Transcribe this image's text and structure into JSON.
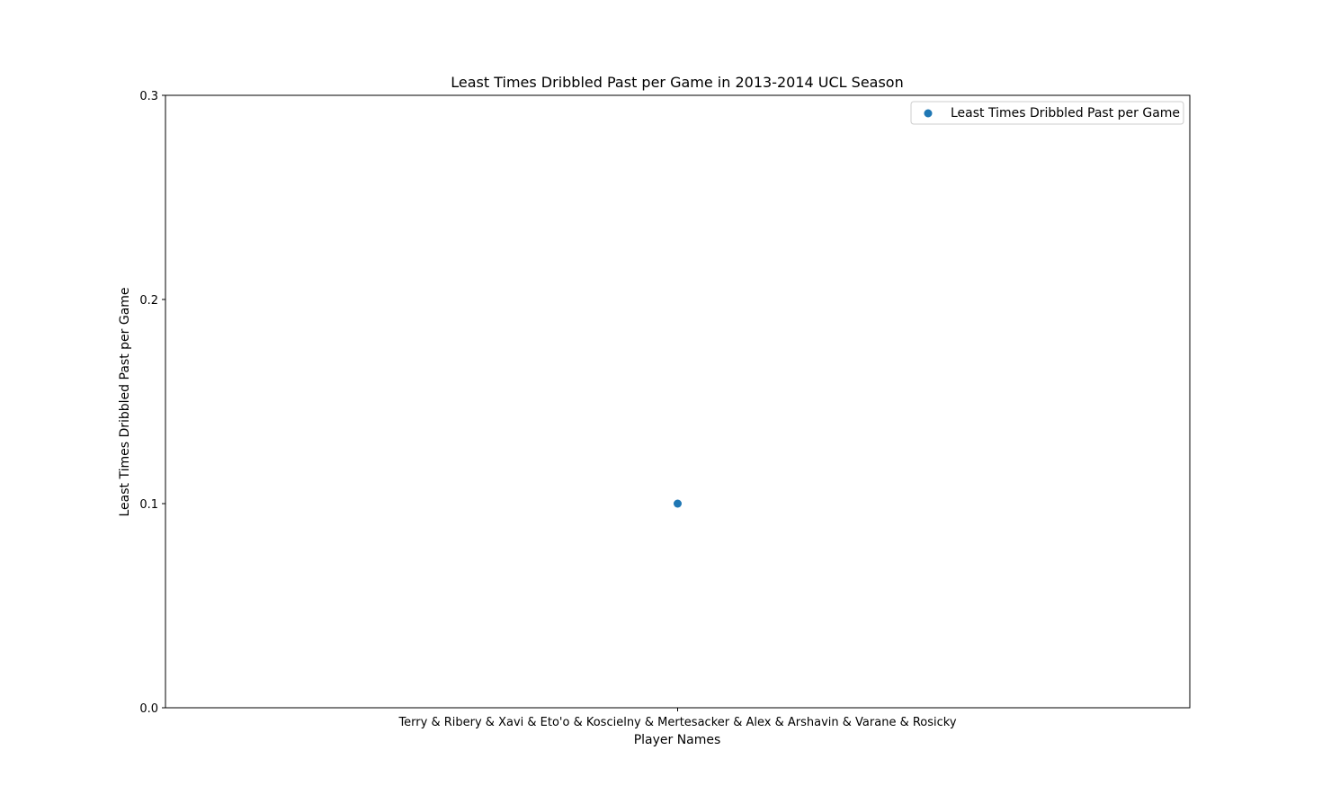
{
  "chart_data": {
    "type": "scatter",
    "title": "Least Times Dribbled Past per Game in 2013-2014 UCL Season",
    "xlabel": "Player Names",
    "ylabel": "Least Times Dribbled Past per Game",
    "categories": [
      "Terry & Ribery & Xavi & Eto'o & Koscielny & Mertesacker & Alex & Arshavin & Varane & Rosicky"
    ],
    "series": [
      {
        "name": "Least Times Dribbled Past per Game",
        "color": "#1f77b4",
        "points": [
          {
            "x": "Terry & Ribery & Xavi & Eto'o & Koscielny & Mertesacker & Alex & Arshavin & Varane & Rosicky",
            "y": 0.1
          }
        ]
      }
    ],
    "ylim": [
      0.0,
      0.3
    ],
    "yticks": [
      "0.0",
      "0.1",
      "0.2",
      "0.3"
    ],
    "grid": false,
    "legend_position": "top-right"
  }
}
